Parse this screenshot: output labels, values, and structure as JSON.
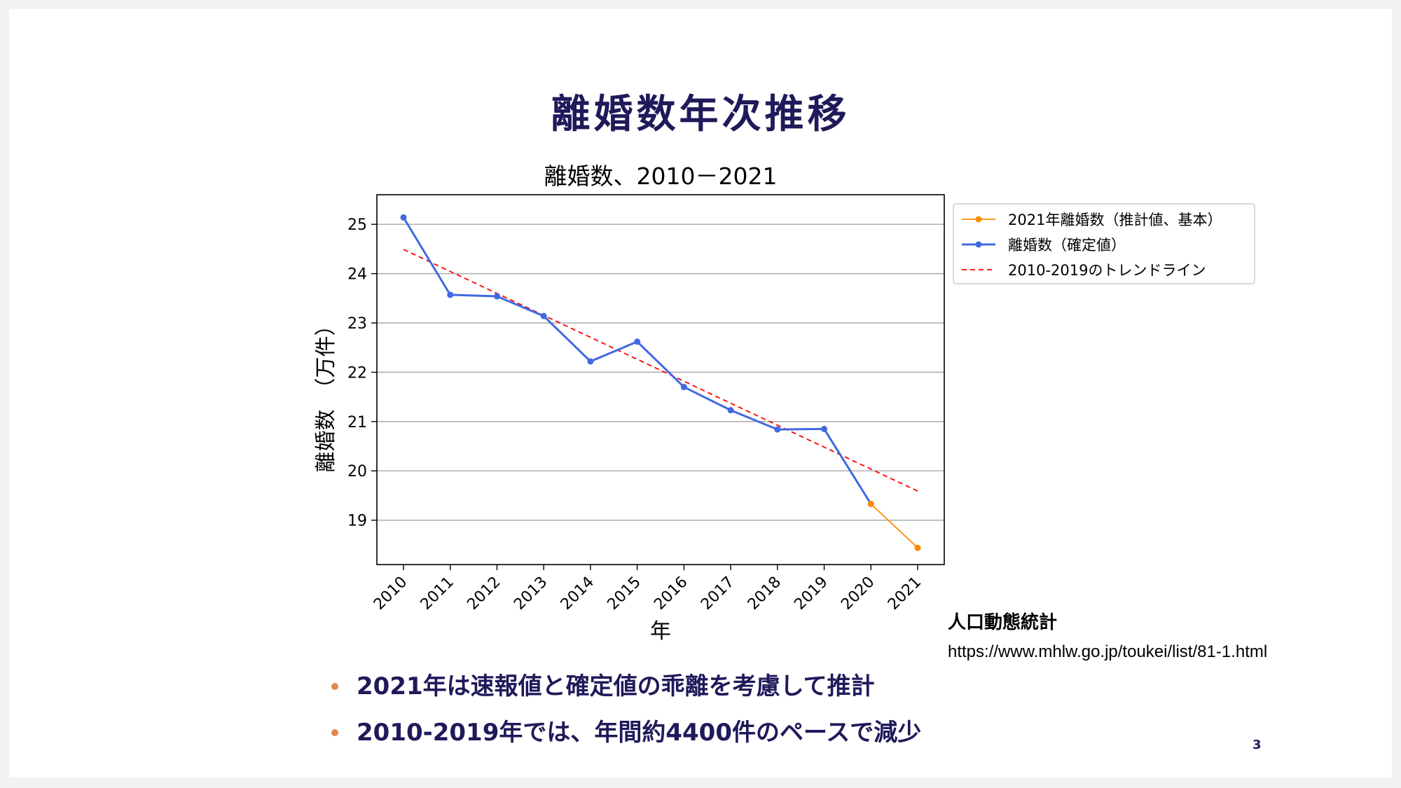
{
  "slide": {
    "title": "離婚数年次推移",
    "page_number": "3",
    "source_title": "人口動態統計",
    "source_url": "https://www.mhlw.go.jp/toukei/list/81-1.html",
    "bullets": [
      "2021年は速報値と確定値の乖離を考慮して推計",
      "2010-2019年では、年間約4400件のペースで減少"
    ]
  },
  "chart_data": {
    "type": "line",
    "title": "離婚数、2010－2021",
    "xlabel": "年",
    "ylabel": "離婚数　（万件）",
    "categories": [
      "2010",
      "2011",
      "2012",
      "2013",
      "2014",
      "2015",
      "2016",
      "2017",
      "2018",
      "2019",
      "2020",
      "2021"
    ],
    "yticks": [
      19,
      20,
      21,
      22,
      23,
      24,
      25
    ],
    "ylim": [
      18.1,
      25.6
    ],
    "grid": "horizontal",
    "legend_position": "outside-right-top",
    "series": [
      {
        "name": "2021年離婚数（推計値、基本）",
        "color": "#ff8c00",
        "x": [
          "2020",
          "2021"
        ],
        "values": [
          19.33,
          18.44
        ]
      },
      {
        "name": "離婚数（確定値）",
        "color": "#4169e1",
        "x": [
          "2010",
          "2011",
          "2012",
          "2013",
          "2014",
          "2015",
          "2016",
          "2017",
          "2018",
          "2019",
          "2020"
        ],
        "values": [
          25.14,
          23.57,
          23.54,
          23.14,
          22.22,
          22.62,
          21.7,
          21.23,
          20.84,
          20.85,
          19.33
        ]
      },
      {
        "name": "2010-2019のトレンドライン",
        "color": "#ff0000",
        "style": "dashed",
        "x": [
          "2010",
          "2021"
        ],
        "values": [
          24.49,
          19.59
        ]
      }
    ]
  }
}
